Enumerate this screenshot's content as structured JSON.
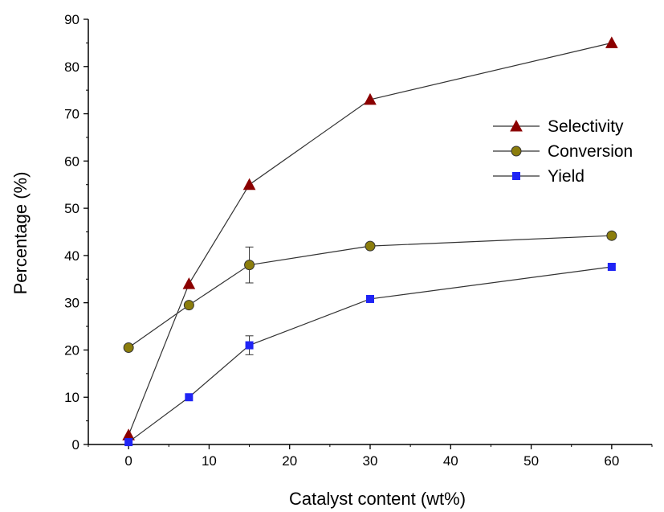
{
  "chart_data": {
    "type": "line",
    "title": "",
    "xlabel": "Catalyst content (wt%)",
    "ylabel": "Percentage (%)",
    "x_axis_note": "broken/compressed axis: ticks 0,10,20,30,40,50,60 equally spaced but data at x=30 and x=60 plotted at the 30 and 60 tick positions",
    "x_ticks": [
      0,
      10,
      20,
      30,
      40,
      50,
      60
    ],
    "y_ticks": [
      0,
      10,
      20,
      30,
      40,
      50,
      60,
      70,
      80,
      90
    ],
    "xlim": [
      -5,
      65
    ],
    "ylim": [
      0,
      90
    ],
    "grid": false,
    "legend_position": "right",
    "series": [
      {
        "name": "Selectivity",
        "marker": "triangle",
        "color": "#8b0000",
        "x": [
          0,
          7.5,
          15,
          30,
          60
        ],
        "values": [
          2,
          34,
          55,
          73,
          85
        ]
      },
      {
        "name": "Conversion",
        "marker": "circle",
        "color": "#8b7d0c",
        "x": [
          0,
          7.5,
          15,
          30,
          60
        ],
        "values": [
          20.5,
          29.5,
          38,
          42,
          44.2
        ],
        "error": [
          0,
          0,
          3.8,
          0,
          0
        ]
      },
      {
        "name": "Yield",
        "marker": "square",
        "color": "#1f24f5",
        "x": [
          0,
          7.5,
          15,
          30,
          60
        ],
        "values": [
          0.5,
          10,
          21,
          30.8,
          37.6
        ],
        "error": [
          0,
          0,
          2,
          0,
          0
        ]
      }
    ]
  }
}
